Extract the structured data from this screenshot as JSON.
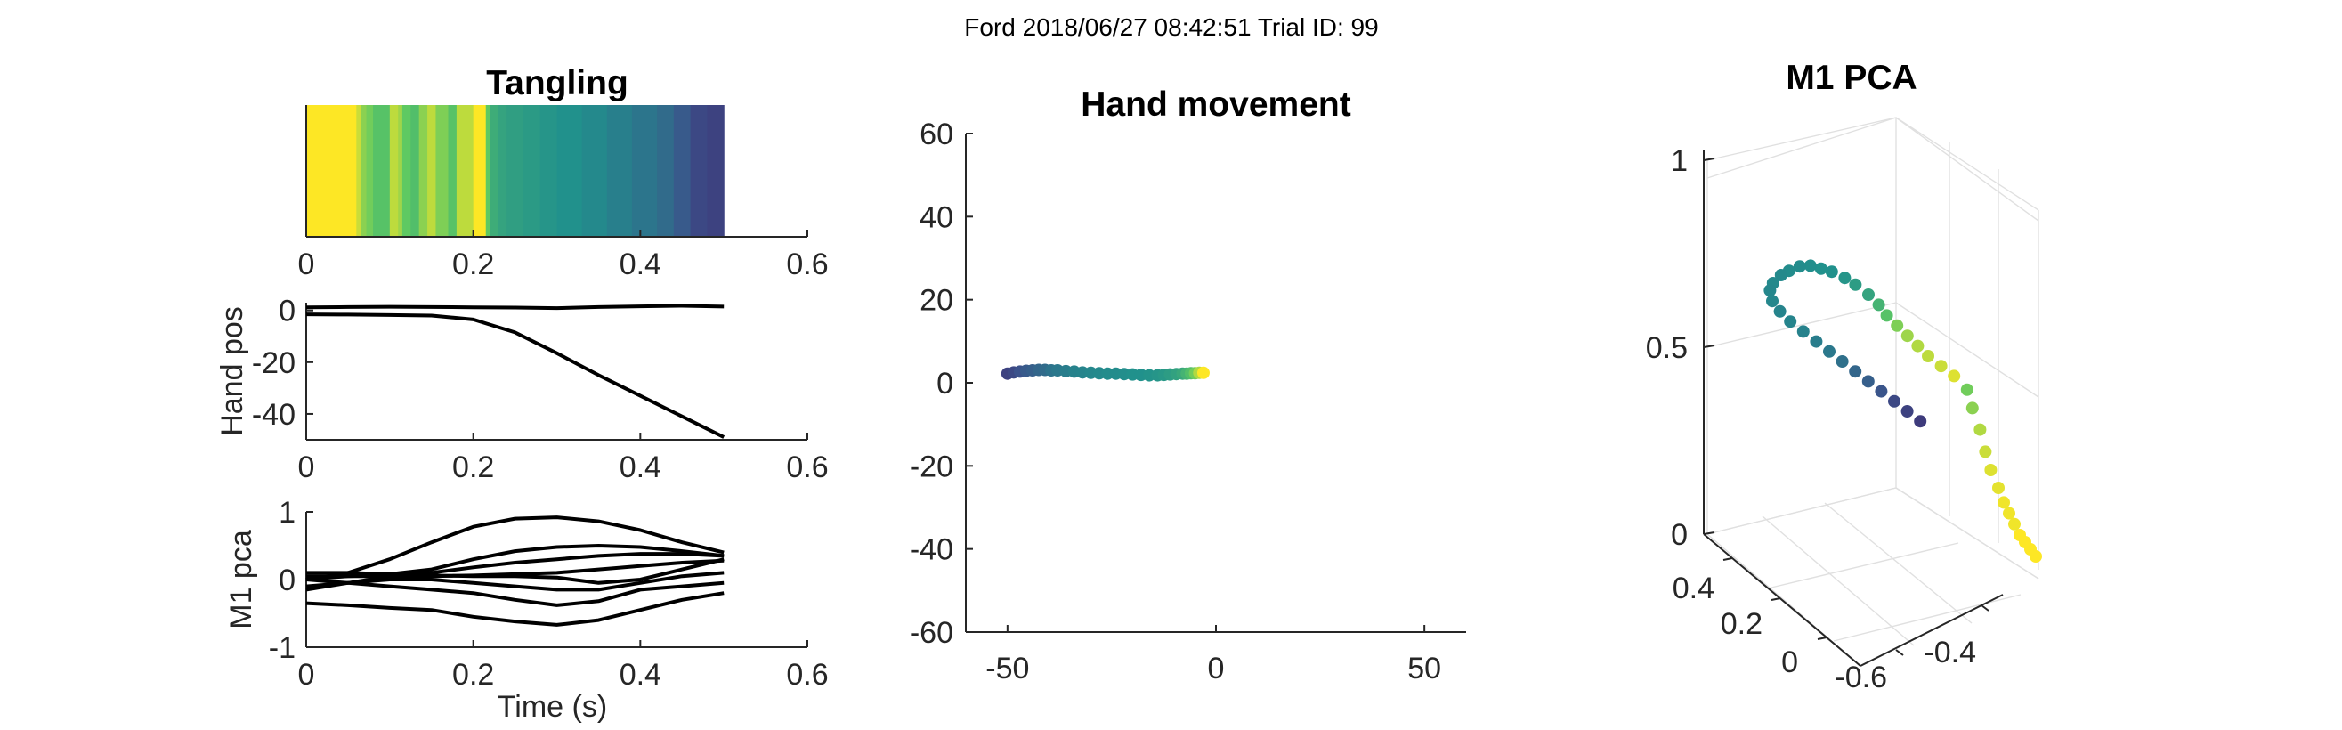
{
  "figure": {
    "suptitle": "Ford 2018/06/27 08:42:51 Trial ID: 99"
  },
  "colormap": [
    "#440154",
    "#3b528b",
    "#21918c",
    "#5ec962",
    "#fde725"
  ],
  "chart_data": [
    {
      "id": "tangling",
      "type": "heatmap",
      "title": "Tangling",
      "xlim": [
        0,
        0.6
      ],
      "xticks": [
        "0",
        "0.2",
        "0.4",
        "0.6"
      ],
      "colormap": "viridis",
      "x": [
        0.0,
        0.06,
        0.066,
        0.072,
        0.08,
        0.1,
        0.11,
        0.115,
        0.125,
        0.135,
        0.145,
        0.155,
        0.17,
        0.18,
        0.2,
        0.215,
        0.22,
        0.23,
        0.24,
        0.26,
        0.28,
        0.3,
        0.33,
        0.36,
        0.39,
        0.42,
        0.44,
        0.46,
        0.48,
        0.5
      ],
      "values": [
        1.0,
        0.92,
        0.82,
        0.78,
        0.72,
        0.9,
        0.85,
        0.75,
        0.7,
        0.82,
        0.9,
        0.8,
        0.72,
        0.9,
        1.0,
        0.75,
        0.62,
        0.58,
        0.56,
        0.54,
        0.52,
        0.5,
        0.47,
        0.43,
        0.39,
        0.35,
        0.28,
        0.22,
        0.2,
        0.2
      ]
    },
    {
      "id": "hand-pos",
      "type": "line",
      "ylabel": "Hand pos",
      "xlim": [
        0,
        0.6
      ],
      "ylim": [
        -50,
        3
      ],
      "xticks": [
        "0",
        "0.2",
        "0.4",
        "0.6"
      ],
      "yticks": [
        "0",
        "-20",
        "-40"
      ],
      "x": [
        0.0,
        0.05,
        0.1,
        0.15,
        0.2,
        0.25,
        0.3,
        0.35,
        0.4,
        0.45,
        0.5
      ],
      "series": [
        {
          "values": [
            1.2,
            1.3,
            1.4,
            1.3,
            1.2,
            1.1,
            0.9,
            1.3,
            1.6,
            1.8,
            1.5
          ]
        },
        {
          "values": [
            -1.5,
            -1.6,
            -1.8,
            -2.0,
            -3.5,
            -8.5,
            -16.5,
            -25.0,
            -33.0,
            -41.0,
            -49.0
          ]
        }
      ]
    },
    {
      "id": "m1-pca-time",
      "type": "line",
      "ylabel": "M1 pca",
      "xlabel": "Time (s)",
      "xlim": [
        0,
        0.6
      ],
      "ylim": [
        -1,
        1
      ],
      "xticks": [
        "0",
        "0.2",
        "0.4",
        "0.6"
      ],
      "yticks": [
        "1",
        "0",
        "-1"
      ],
      "x": [
        0.0,
        0.05,
        0.1,
        0.15,
        0.2,
        0.25,
        0.3,
        0.35,
        0.4,
        0.45,
        0.5
      ],
      "series": [
        {
          "values": [
            0.0,
            0.1,
            0.3,
            0.55,
            0.78,
            0.9,
            0.92,
            0.86,
            0.73,
            0.55,
            0.4
          ]
        },
        {
          "values": [
            0.1,
            0.1,
            0.08,
            0.15,
            0.3,
            0.42,
            0.48,
            0.5,
            0.48,
            0.42,
            0.35
          ]
        },
        {
          "values": [
            -0.15,
            -0.05,
            0.05,
            0.1,
            0.18,
            0.25,
            0.3,
            0.35,
            0.38,
            0.38,
            0.35
          ]
        },
        {
          "values": [
            0.05,
            0.05,
            0.05,
            0.05,
            0.06,
            0.08,
            0.1,
            0.15,
            0.2,
            0.25,
            0.28
          ]
        },
        {
          "values": [
            0.0,
            0.05,
            0.07,
            0.06,
            0.05,
            0.05,
            0.03,
            -0.05,
            0.0,
            0.15,
            0.3
          ]
        },
        {
          "values": [
            -0.1,
            -0.05,
            0.0,
            0.0,
            -0.05,
            -0.1,
            -0.15,
            -0.15,
            -0.05,
            0.05,
            0.1
          ]
        },
        {
          "values": [
            0.0,
            -0.05,
            -0.1,
            -0.15,
            -0.2,
            -0.3,
            -0.38,
            -0.32,
            -0.15,
            -0.1,
            -0.05
          ]
        },
        {
          "values": [
            -0.35,
            -0.38,
            -0.42,
            -0.45,
            -0.55,
            -0.62,
            -0.67,
            -0.6,
            -0.45,
            -0.3,
            -0.2
          ]
        }
      ]
    },
    {
      "id": "hand-movement",
      "type": "scatter",
      "title": "Hand movement",
      "xlim": [
        -60,
        60
      ],
      "ylim": [
        -60,
        60
      ],
      "xticks": [
        "-50",
        "0",
        "50"
      ],
      "yticks": [
        "60",
        "40",
        "20",
        "0",
        "-20",
        "-40",
        "-60"
      ],
      "x": [
        -50,
        -48.5,
        -47,
        -45.5,
        -44,
        -42.5,
        -41,
        -39.5,
        -38,
        -36,
        -34,
        -32,
        -30,
        -28,
        -26,
        -24,
        -22,
        -20,
        -18,
        -16,
        -14,
        -12.5,
        -11,
        -9.5,
        -8,
        -7,
        -6,
        -5,
        -4,
        -3
      ],
      "y": [
        2.2,
        2.5,
        2.7,
        2.9,
        3.0,
        3.1,
        3.1,
        3.0,
        3.0,
        2.8,
        2.7,
        2.5,
        2.4,
        2.3,
        2.2,
        2.2,
        2.1,
        2.0,
        1.9,
        1.8,
        1.8,
        1.9,
        2.0,
        2.1,
        2.2,
        2.2,
        2.3,
        2.3,
        2.4,
        2.4
      ],
      "color_values": [
        0.2,
        0.22,
        0.25,
        0.28,
        0.3,
        0.33,
        0.35,
        0.38,
        0.4,
        0.42,
        0.44,
        0.45,
        0.46,
        0.47,
        0.48,
        0.48,
        0.49,
        0.5,
        0.5,
        0.51,
        0.52,
        0.53,
        0.55,
        0.57,
        0.6,
        0.65,
        0.7,
        0.78,
        0.88,
        1.0
      ]
    },
    {
      "id": "m1-pca-3d",
      "type": "scatter",
      "title": "M1 PCA",
      "zticks": [
        "1",
        "0.5",
        "0"
      ],
      "yticks": [
        "0.4",
        "0.2",
        "0"
      ],
      "xticks": [
        "-0.6",
        "-0.4"
      ],
      "points": [
        [
          0.6,
          0.35,
          0.0,
          1.0
        ],
        [
          0.58,
          0.35,
          0.02,
          1.0
        ],
        [
          0.56,
          0.35,
          0.04,
          1.0
        ],
        [
          0.54,
          0.35,
          0.06,
          1.0
        ],
        [
          0.52,
          0.35,
          0.09,
          0.98
        ],
        [
          0.5,
          0.35,
          0.12,
          0.98
        ],
        [
          0.48,
          0.35,
          0.15,
          0.98
        ],
        [
          0.46,
          0.35,
          0.19,
          0.96
        ],
        [
          0.44,
          0.36,
          0.24,
          0.95
        ],
        [
          0.42,
          0.36,
          0.29,
          0.92
        ],
        [
          0.4,
          0.36,
          0.35,
          0.88
        ],
        [
          0.38,
          0.37,
          0.41,
          0.82
        ],
        [
          0.36,
          0.37,
          0.46,
          0.78
        ],
        [
          0.32,
          0.38,
          0.5,
          0.95
        ],
        [
          0.28,
          0.39,
          0.53,
          0.92
        ],
        [
          0.24,
          0.4,
          0.56,
          0.9
        ],
        [
          0.21,
          0.41,
          0.59,
          0.88
        ],
        [
          0.18,
          0.42,
          0.62,
          0.85
        ],
        [
          0.15,
          0.43,
          0.65,
          0.8
        ],
        [
          0.12,
          0.44,
          0.68,
          0.72
        ],
        [
          0.09,
          0.44,
          0.71,
          0.65
        ],
        [
          0.06,
          0.45,
          0.74,
          0.58
        ],
        [
          0.02,
          0.46,
          0.77,
          0.55
        ],
        [
          -0.02,
          0.46,
          0.79,
          0.52
        ],
        [
          -0.06,
          0.47,
          0.81,
          0.5
        ],
        [
          -0.1,
          0.47,
          0.82,
          0.5
        ],
        [
          -0.14,
          0.47,
          0.83,
          0.49
        ],
        [
          -0.18,
          0.47,
          0.83,
          0.48
        ],
        [
          -0.22,
          0.47,
          0.82,
          0.48
        ],
        [
          -0.25,
          0.47,
          0.81,
          0.47
        ],
        [
          -0.28,
          0.47,
          0.79,
          0.47
        ],
        [
          -0.3,
          0.46,
          0.77,
          0.46
        ],
        [
          -0.3,
          0.45,
          0.74,
          0.46
        ],
        [
          -0.28,
          0.44,
          0.71,
          0.45
        ],
        [
          -0.25,
          0.43,
          0.68,
          0.45
        ],
        [
          -0.21,
          0.42,
          0.65,
          0.44
        ],
        [
          -0.17,
          0.41,
          0.62,
          0.42
        ],
        [
          -0.13,
          0.4,
          0.59,
          0.4
        ],
        [
          -0.09,
          0.39,
          0.56,
          0.37
        ],
        [
          -0.05,
          0.38,
          0.53,
          0.33
        ],
        [
          -0.01,
          0.37,
          0.5,
          0.3
        ],
        [
          0.03,
          0.36,
          0.47,
          0.26
        ],
        [
          0.07,
          0.35,
          0.44,
          0.22
        ],
        [
          0.11,
          0.34,
          0.41,
          0.2
        ],
        [
          0.15,
          0.33,
          0.38,
          0.18
        ]
      ]
    }
  ]
}
